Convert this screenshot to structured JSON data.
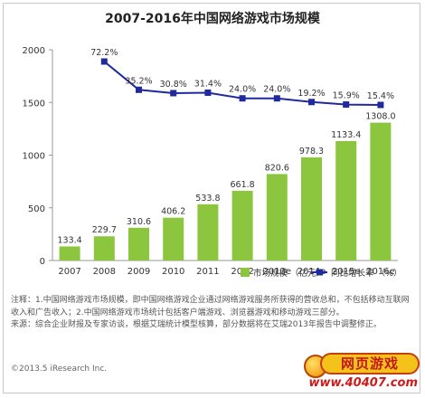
{
  "chart_data": {
    "type": "bar+line",
    "title": "2007-2016年中国网络游戏市场规模",
    "categories": [
      "2007",
      "2008",
      "2009",
      "2010",
      "2011",
      "2012",
      "2013e",
      "2014e",
      "2015e",
      "2016e"
    ],
    "series": [
      {
        "name": "市场规模 （亿元）",
        "kind": "bar",
        "values": [
          133.4,
          229.7,
          310.6,
          406.2,
          533.8,
          661.8,
          820.6,
          978.3,
          1133.4,
          1308.0
        ],
        "labels": [
          "133.4",
          "229.7",
          "310.6",
          "406.2",
          "533.8",
          "661.8",
          "820.6",
          "978.3",
          "1133.4",
          "1308.0"
        ],
        "color": "#8cc63f"
      },
      {
        "name": "同比增长率 （%）",
        "kind": "line",
        "values": [
          null,
          72.2,
          35.2,
          30.8,
          31.4,
          24.0,
          24.0,
          19.2,
          15.9,
          15.4
        ],
        "labels": [
          "",
          "72.2%",
          "35.2%",
          "30.8%",
          "31.4%",
          "24.0%",
          "24.0%",
          "19.2%",
          "15.9%",
          "15.4%"
        ],
        "color": "#1f2a9c"
      }
    ],
    "yticks": [
      "0",
      "500",
      "1000",
      "1500",
      "2000"
    ],
    "ylim": [
      0,
      2000
    ],
    "grid": false,
    "legend": "bottom-right"
  },
  "notes": {
    "line1": "注释：1.中国网络游戏市场规模，即中国网络游戏企业通过网络游戏服务所获得的营收总和，不包括移动互联网收入和广告收入；2.中国网络游戏市场统计包括客户端游戏、浏览器游戏和移动游戏三部分。",
    "line2": "来源：综合企业财报及专家访谈，根据艾瑞统计模型核算，部分数据将在艾瑞2013年报告中调整修正。"
  },
  "copyright": "©2013.5 iResearch Inc.",
  "watermark": {
    "top": "网页游戏",
    "bottom": "www.40407.com"
  }
}
